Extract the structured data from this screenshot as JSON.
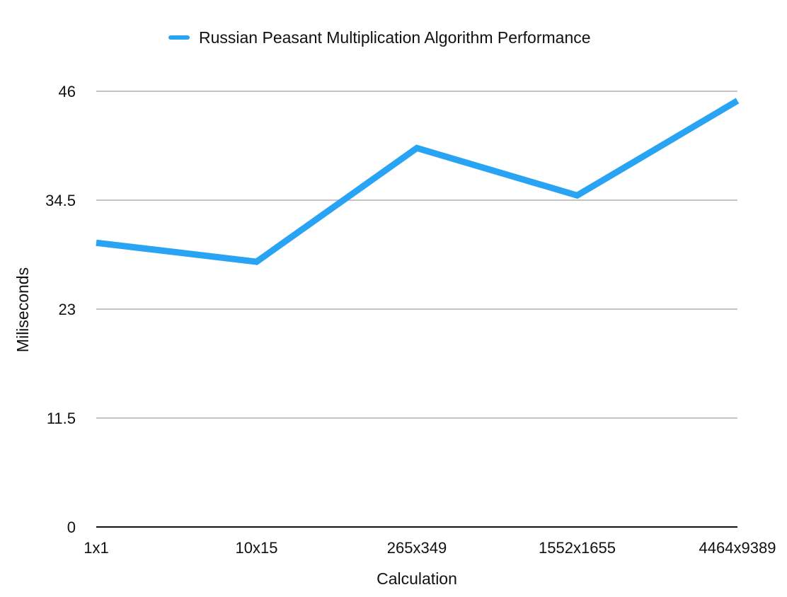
{
  "chart_data": {
    "type": "line",
    "title": "",
    "xlabel": "Calculation",
    "ylabel": "Miliseconds",
    "categories": [
      "1x1",
      "10x15",
      "265x349",
      "1552x1655",
      "4464x9389"
    ],
    "series": [
      {
        "name": "Russian Peasant Multiplication Algorithm Performance",
        "values": [
          30,
          28,
          40,
          35,
          45
        ],
        "color": "#29a3f3"
      }
    ],
    "ylim": [
      0,
      46
    ],
    "yticks": [
      0,
      11.5,
      23,
      34.5,
      46
    ],
    "ytick_labels": [
      "0",
      "11.5",
      "23",
      "34.5",
      "46"
    ],
    "grid": true,
    "legend": "top-center",
    "gridline_color": "#c4c4c4",
    "axis_color": "#111111"
  }
}
